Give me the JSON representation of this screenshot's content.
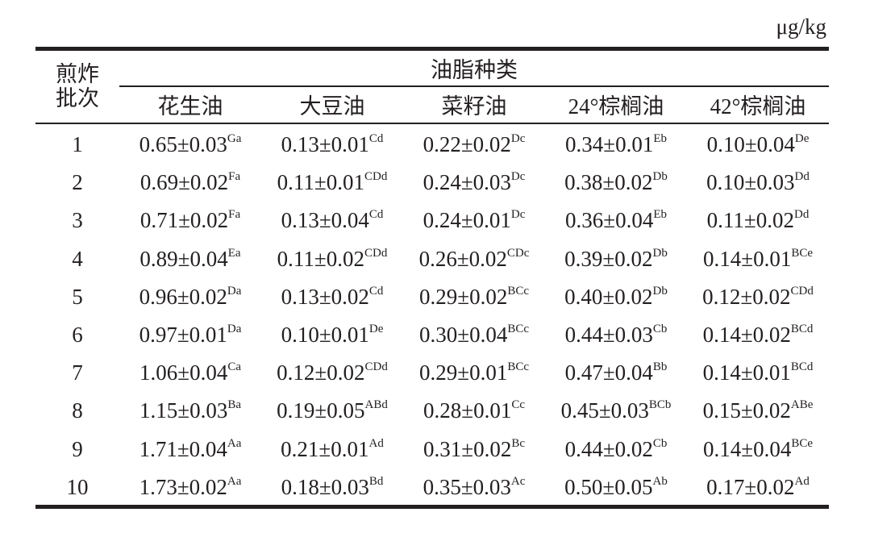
{
  "unit": "μg/kg",
  "table": {
    "row_header_line1": "煎炸",
    "row_header_line2": "批次",
    "group_header": "油脂种类",
    "columns": [
      "花生油",
      "大豆油",
      "菜籽油",
      "24°棕榈油",
      "42°棕榈油"
    ],
    "rows": [
      {
        "batch": "1",
        "cells": [
          {
            "v": "0.65±0.03",
            "s": "Ga"
          },
          {
            "v": "0.13±0.01",
            "s": "Cd"
          },
          {
            "v": "0.22±0.02",
            "s": "Dc"
          },
          {
            "v": "0.34±0.01",
            "s": "Eb"
          },
          {
            "v": "0.10±0.04",
            "s": "De"
          }
        ]
      },
      {
        "batch": "2",
        "cells": [
          {
            "v": "0.69±0.02",
            "s": "Fa"
          },
          {
            "v": "0.11±0.01",
            "s": "CDd"
          },
          {
            "v": "0.24±0.03",
            "s": "Dc"
          },
          {
            "v": "0.38±0.02",
            "s": "Db"
          },
          {
            "v": "0.10±0.03",
            "s": "Dd"
          }
        ]
      },
      {
        "batch": "3",
        "cells": [
          {
            "v": "0.71±0.02",
            "s": "Fa"
          },
          {
            "v": "0.13±0.04",
            "s": "Cd"
          },
          {
            "v": "0.24±0.01",
            "s": "Dc"
          },
          {
            "v": "0.36±0.04",
            "s": "Eb"
          },
          {
            "v": "0.11±0.02",
            "s": "Dd"
          }
        ]
      },
      {
        "batch": "4",
        "cells": [
          {
            "v": "0.89±0.04",
            "s": "Ea"
          },
          {
            "v": "0.11±0.02",
            "s": "CDd"
          },
          {
            "v": "0.26±0.02",
            "s": "CDc"
          },
          {
            "v": "0.39±0.02",
            "s": "Db"
          },
          {
            "v": "0.14±0.01",
            "s": "BCe"
          }
        ]
      },
      {
        "batch": "5",
        "cells": [
          {
            "v": "0.96±0.02",
            "s": "Da"
          },
          {
            "v": "0.13±0.02",
            "s": "Cd"
          },
          {
            "v": "0.29±0.02",
            "s": "BCc"
          },
          {
            "v": "0.40±0.02",
            "s": "Db"
          },
          {
            "v": "0.12±0.02",
            "s": "CDd"
          }
        ]
      },
      {
        "batch": "6",
        "cells": [
          {
            "v": "0.97±0.01",
            "s": "Da"
          },
          {
            "v": "0.10±0.01",
            "s": "De"
          },
          {
            "v": "0.30±0.04",
            "s": "BCc"
          },
          {
            "v": "0.44±0.03",
            "s": "Cb"
          },
          {
            "v": "0.14±0.02",
            "s": "BCd"
          }
        ]
      },
      {
        "batch": "7",
        "cells": [
          {
            "v": "1.06±0.04",
            "s": "Ca"
          },
          {
            "v": "0.12±0.02",
            "s": "CDd"
          },
          {
            "v": "0.29±0.01",
            "s": "BCc"
          },
          {
            "v": "0.47±0.04",
            "s": "Bb"
          },
          {
            "v": "0.14±0.01",
            "s": "BCd"
          }
        ]
      },
      {
        "batch": "8",
        "cells": [
          {
            "v": "1.15±0.03",
            "s": "Ba"
          },
          {
            "v": "0.19±0.05",
            "s": "ABd"
          },
          {
            "v": "0.28±0.01",
            "s": "Cc"
          },
          {
            "v": "0.45±0.03",
            "s": "BCb"
          },
          {
            "v": "0.15±0.02",
            "s": "ABe"
          }
        ]
      },
      {
        "batch": "9",
        "cells": [
          {
            "v": "1.71±0.04",
            "s": "Aa"
          },
          {
            "v": "0.21±0.01",
            "s": "Ad"
          },
          {
            "v": "0.31±0.02",
            "s": "Bc"
          },
          {
            "v": "0.44±0.02",
            "s": "Cb"
          },
          {
            "v": "0.14±0.04",
            "s": "BCe"
          }
        ]
      },
      {
        "batch": "10",
        "cells": [
          {
            "v": "1.73±0.02",
            "s": "Aa"
          },
          {
            "v": "0.18±0.03",
            "s": "Bd"
          },
          {
            "v": "0.35±0.03",
            "s": "Ac"
          },
          {
            "v": "0.50±0.05",
            "s": "Ab"
          },
          {
            "v": "0.17±0.02",
            "s": "Ad"
          }
        ]
      }
    ]
  }
}
